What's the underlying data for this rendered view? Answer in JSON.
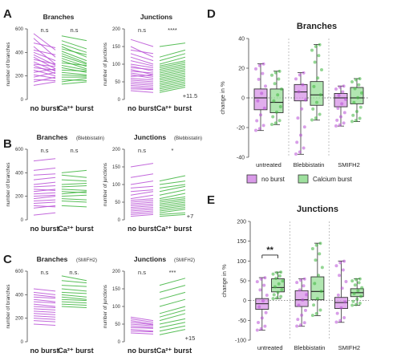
{
  "figure": {
    "letters": [
      "A",
      "B",
      "C",
      "D",
      "E"
    ],
    "category_labels": {
      "left": "no burst",
      "right": "Ca²⁺ burst"
    }
  },
  "chart_data": [
    {
      "type": "line",
      "panel": "A-branches",
      "title": "Branches",
      "ylabel": "number of branches",
      "ylim": [
        0,
        600
      ],
      "yticks": [
        0,
        200,
        400,
        600
      ],
      "categories": [
        "no burst",
        "Ca²⁺ burst"
      ],
      "significance": "n.s",
      "significance_right": "n.s",
      "annotation": "",
      "series": [
        {
          "color": "#b84fd6",
          "pairs": [
            [
              560,
              420
            ],
            [
              520,
              360
            ],
            [
              480,
              440
            ],
            [
              450,
              300
            ],
            [
              420,
              380
            ],
            [
              400,
              330
            ],
            [
              380,
              290
            ],
            [
              360,
              260
            ],
            [
              340,
              300
            ],
            [
              320,
              240
            ],
            [
              300,
              280
            ],
            [
              290,
              220
            ],
            [
              270,
              250
            ],
            [
              250,
              200
            ],
            [
              230,
              260
            ],
            [
              210,
              180
            ],
            [
              190,
              230
            ],
            [
              170,
              160
            ],
            [
              150,
              190
            ],
            [
              120,
              150
            ]
          ]
        },
        {
          "color": "#3cb43c",
          "pairs": [
            [
              540,
              500
            ],
            [
              500,
              430
            ],
            [
              470,
              400
            ],
            [
              450,
              360
            ],
            [
              430,
              380
            ],
            [
              410,
              330
            ],
            [
              390,
              310
            ],
            [
              370,
              300
            ],
            [
              350,
              280
            ],
            [
              330,
              260
            ],
            [
              310,
              290
            ],
            [
              290,
              250
            ],
            [
              270,
              230
            ],
            [
              250,
              240
            ],
            [
              230,
              210
            ],
            [
              210,
              200
            ],
            [
              190,
              190
            ],
            [
              170,
              160
            ],
            [
              150,
              180
            ],
            [
              130,
              150
            ]
          ]
        }
      ]
    },
    {
      "type": "line",
      "panel": "A-junctions",
      "title": "Junctions",
      "ylabel": "number of junctions",
      "ylim": [
        0,
        200
      ],
      "yticks": [
        0,
        50,
        100,
        150,
        200
      ],
      "categories": [
        "no burst",
        "Ca²⁺ burst"
      ],
      "significance": "n.s",
      "significance_right": "****",
      "annotation": "+11.5",
      "series": [
        {
          "color": "#b84fd6",
          "pairs": [
            [
              170,
              150
            ],
            [
              150,
              120
            ],
            [
              140,
              130
            ],
            [
              130,
              110
            ],
            [
              120,
              100
            ],
            [
              110,
              95
            ],
            [
              100,
              90
            ],
            [
              95,
              80
            ],
            [
              90,
              85
            ],
            [
              85,
              70
            ],
            [
              80,
              75
            ],
            [
              75,
              65
            ],
            [
              70,
              60
            ],
            [
              65,
              70
            ],
            [
              60,
              55
            ],
            [
              55,
              50
            ],
            [
              50,
              45
            ],
            [
              45,
              40
            ],
            [
              40,
              35
            ],
            [
              35,
              30
            ],
            [
              30,
              28
            ],
            [
              25,
              20
            ]
          ]
        },
        {
          "color": "#3cb43c",
          "pairs": [
            [
              150,
              160
            ],
            [
              120,
              140
            ],
            [
              110,
              130
            ],
            [
              100,
              120
            ],
            [
              95,
              110
            ],
            [
              90,
              105
            ],
            [
              85,
              100
            ],
            [
              80,
              95
            ],
            [
              75,
              90
            ],
            [
              70,
              85
            ],
            [
              65,
              80
            ],
            [
              60,
              75
            ],
            [
              55,
              70
            ],
            [
              50,
              65
            ],
            [
              45,
              60
            ],
            [
              40,
              55
            ],
            [
              35,
              50
            ],
            [
              30,
              45
            ],
            [
              25,
              40
            ],
            [
              20,
              35
            ]
          ]
        }
      ]
    },
    {
      "type": "line",
      "panel": "B-branches",
      "title": "Branches",
      "title_suffix": "(Blebbistatin)",
      "ylabel": "number of branches",
      "ylim": [
        0,
        600
      ],
      "yticks": [
        0,
        200,
        400,
        600
      ],
      "categories": [
        "no burst",
        "Ca²⁺ burst"
      ],
      "significance": "n.s",
      "significance_right": "n.s",
      "annotation": "",
      "series": [
        {
          "color": "#b84fd6",
          "pairs": [
            [
              500,
              520
            ],
            [
              420,
              440
            ],
            [
              380,
              390
            ],
            [
              340,
              360
            ],
            [
              300,
              320
            ],
            [
              280,
              290
            ],
            [
              260,
              250
            ],
            [
              240,
              260
            ],
            [
              220,
              230
            ],
            [
              200,
              210
            ],
            [
              180,
              200
            ],
            [
              160,
              170
            ],
            [
              140,
              150
            ],
            [
              120,
              110
            ],
            [
              100,
              120
            ],
            [
              40,
              60
            ]
          ]
        },
        {
          "color": "#3cb43c",
          "pairs": [
            [
              400,
              420
            ],
            [
              380,
              360
            ],
            [
              340,
              330
            ],
            [
              300,
              310
            ],
            [
              280,
              290
            ],
            [
              260,
              250
            ],
            [
              240,
              230
            ],
            [
              220,
              240
            ],
            [
              200,
              210
            ],
            [
              180,
              170
            ],
            [
              160,
              150
            ],
            [
              120,
              110
            ]
          ]
        }
      ]
    },
    {
      "type": "line",
      "panel": "B-junctions",
      "title": "Junctions",
      "title_suffix": "(Blebbistatin)",
      "ylabel": "number of junctions",
      "ylim": [
        0,
        200
      ],
      "yticks": [
        0,
        50,
        100,
        150,
        200
      ],
      "categories": [
        "no burst",
        "Ca²⁺ burst"
      ],
      "significance": "n.s",
      "significance_right": "*",
      "annotation": "+7",
      "series": [
        {
          "color": "#b84fd6",
          "pairs": [
            [
              150,
              160
            ],
            [
              120,
              130
            ],
            [
              100,
              110
            ],
            [
              90,
              95
            ],
            [
              80,
              85
            ],
            [
              70,
              80
            ],
            [
              60,
              70
            ],
            [
              55,
              60
            ],
            [
              50,
              55
            ],
            [
              45,
              50
            ],
            [
              40,
              45
            ],
            [
              35,
              40
            ],
            [
              30,
              35
            ],
            [
              25,
              30
            ],
            [
              20,
              25
            ],
            [
              15,
              20
            ],
            [
              10,
              15
            ]
          ]
        },
        {
          "color": "#3cb43c",
          "pairs": [
            [
              110,
              125
            ],
            [
              100,
              110
            ],
            [
              90,
              100
            ],
            [
              80,
              95
            ],
            [
              70,
              85
            ],
            [
              60,
              75
            ],
            [
              55,
              65
            ],
            [
              50,
              60
            ],
            [
              45,
              55
            ],
            [
              40,
              50
            ],
            [
              35,
              45
            ],
            [
              30,
              40
            ],
            [
              25,
              35
            ],
            [
              20,
              30
            ],
            [
              15,
              20
            ],
            [
              10,
              15
            ]
          ]
        }
      ]
    },
    {
      "type": "line",
      "panel": "C-branches",
      "title": "Branches",
      "title_suffix": "(SMIFH2)",
      "ylabel": "number of branches",
      "ylim": [
        0,
        600
      ],
      "yticks": [
        0,
        200,
        400,
        600
      ],
      "categories": [
        "no burst",
        "Ca²⁺ burst"
      ],
      "significance": "n.s",
      "significance_right": "n.s.",
      "annotation": "",
      "series": [
        {
          "color": "#b84fd6",
          "pairs": [
            [
              450,
              430
            ],
            [
              420,
              400
            ],
            [
              400,
              380
            ],
            [
              380,
              370
            ],
            [
              360,
              340
            ],
            [
              340,
              330
            ],
            [
              320,
              300
            ],
            [
              300,
              290
            ],
            [
              280,
              270
            ],
            [
              260,
              250
            ],
            [
              240,
              230
            ],
            [
              220,
              210
            ],
            [
              200,
              190
            ],
            [
              180,
              170
            ],
            [
              150,
              140
            ]
          ]
        },
        {
          "color": "#3cb43c",
          "pairs": [
            [
              560,
              520
            ],
            [
              520,
              500
            ],
            [
              480,
              470
            ],
            [
              450,
              430
            ],
            [
              420,
              410
            ],
            [
              400,
              380
            ],
            [
              380,
              360
            ],
            [
              360,
              350
            ],
            [
              340,
              330
            ],
            [
              320,
              310
            ],
            [
              300,
              290
            ]
          ]
        }
      ]
    },
    {
      "type": "line",
      "panel": "C-junctions",
      "title": "Junctions",
      "title_suffix": "(SMIFH2)",
      "ylabel": "number of junctions",
      "ylim": [
        0,
        200
      ],
      "yticks": [
        0,
        50,
        100,
        150,
        200
      ],
      "categories": [
        "no burst",
        "Ca²⁺ burst"
      ],
      "significance": "n.s",
      "significance_right": "***",
      "annotation": "+15",
      "series": [
        {
          "color": "#b84fd6",
          "pairs": [
            [
              70,
              60
            ],
            [
              65,
              55
            ],
            [
              60,
              50
            ],
            [
              55,
              48
            ],
            [
              50,
              45
            ],
            [
              45,
              40
            ],
            [
              40,
              38
            ],
            [
              35,
              30
            ],
            [
              30,
              28
            ],
            [
              25,
              22
            ]
          ]
        },
        {
          "color": "#3cb43c",
          "pairs": [
            [
              160,
              180
            ],
            [
              140,
              160
            ],
            [
              120,
              140
            ],
            [
              100,
              120
            ],
            [
              80,
              100
            ],
            [
              70,
              90
            ],
            [
              60,
              80
            ],
            [
              50,
              65
            ],
            [
              40,
              55
            ],
            [
              30,
              45
            ],
            [
              20,
              35
            ]
          ]
        }
      ]
    },
    {
      "type": "box",
      "panel": "D",
      "title": "Branches",
      "ylabel": "change in %",
      "ylim": [
        -40,
        40
      ],
      "yticks": [
        -40,
        -20,
        0,
        20,
        40
      ],
      "groups": [
        "untreated",
        "Blebbistatin",
        "SMIFH2"
      ],
      "legend": [
        {
          "name": "no burst",
          "color": "#b84fd6"
        },
        {
          "name": "Calcium burst",
          "color": "#3cb43c"
        }
      ],
      "boxes": [
        {
          "group": "untreated",
          "series": "no burst",
          "min": -22,
          "q1": -8,
          "median": 0,
          "q3": 6,
          "max": 23
        },
        {
          "group": "untreated",
          "series": "Calcium burst",
          "min": -18,
          "q1": -10,
          "median": -3,
          "q3": 6,
          "max": 18
        },
        {
          "group": "Blebbistatin",
          "series": "no burst",
          "min": -38,
          "q1": -2,
          "median": 4,
          "q3": 9,
          "max": 17
        },
        {
          "group": "Blebbistatin",
          "series": "Calcium burst",
          "min": -15,
          "q1": -5,
          "median": 2,
          "q3": 11,
          "max": 36
        },
        {
          "group": "SMIFH2",
          "series": "no burst",
          "min": -19,
          "q1": -6,
          "median": 0,
          "q3": 3,
          "max": 8
        },
        {
          "group": "SMIFH2",
          "series": "Calcium burst",
          "min": -16,
          "q1": -4,
          "median": 0,
          "q3": 7,
          "max": 13
        }
      ]
    },
    {
      "type": "box",
      "panel": "E",
      "title": "Junctions",
      "ylabel": "change in %",
      "ylim": [
        -100,
        200
      ],
      "yticks": [
        -100,
        -50,
        0,
        50,
        100,
        150,
        200
      ],
      "groups": [
        "untreated",
        "Blebbistatin",
        "SMIFH2"
      ],
      "significance": "**",
      "boxes": [
        {
          "group": "untreated",
          "series": "no burst",
          "min": -75,
          "q1": -22,
          "median": -8,
          "q3": 5,
          "max": 58
        },
        {
          "group": "untreated",
          "series": "Calcium burst",
          "min": 5,
          "q1": 22,
          "median": 33,
          "q3": 55,
          "max": 72
        },
        {
          "group": "Blebbistatin",
          "series": "no burst",
          "min": -65,
          "q1": -15,
          "median": 2,
          "q3": 25,
          "max": 55
        },
        {
          "group": "Blebbistatin",
          "series": "Calcium burst",
          "min": -38,
          "q1": 2,
          "median": 23,
          "q3": 60,
          "max": 145
        },
        {
          "group": "SMIFH2",
          "series": "no burst",
          "min": -55,
          "q1": -20,
          "median": -5,
          "q3": 8,
          "max": 100
        },
        {
          "group": "SMIFH2",
          "series": "Calcium burst",
          "min": -12,
          "q1": 10,
          "median": 20,
          "q3": 30,
          "max": 55
        }
      ]
    }
  ]
}
